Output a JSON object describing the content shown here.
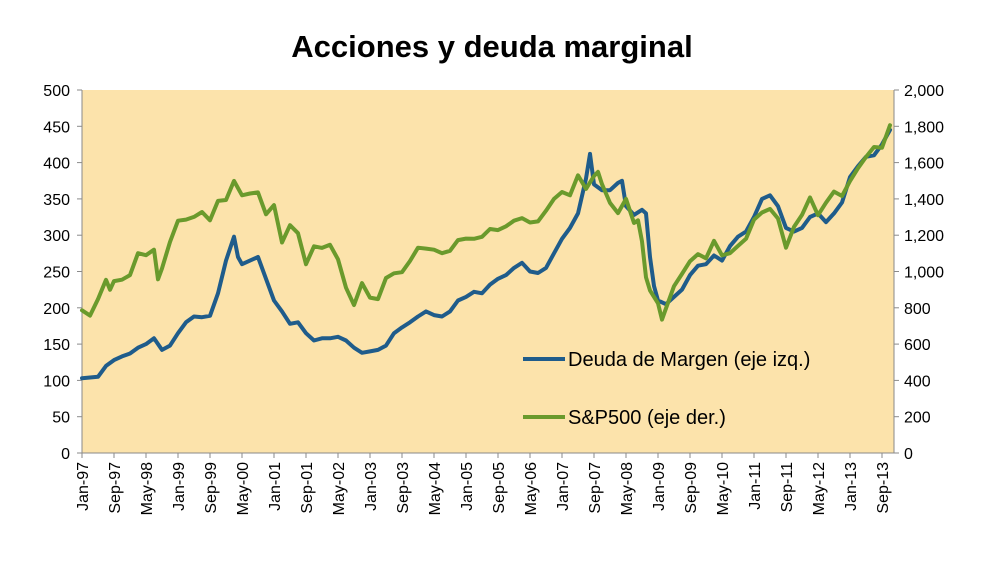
{
  "chart_data": {
    "type": "line",
    "title": "Acciones y deuda marginal",
    "x_tick_labels": [
      "Jan-97",
      "Sep-97",
      "May-98",
      "Jan-99",
      "Sep-99",
      "May-00",
      "Jan-01",
      "Sep-01",
      "May-02",
      "Jan-03",
      "Sep-03",
      "May-04",
      "Jan-05",
      "Sep-05",
      "May-06",
      "Jan-07",
      "Sep-07",
      "May-08",
      "Jan-09",
      "Sep-09",
      "May-10",
      "Jan-11",
      "Sep-11",
      "May-12",
      "Jan-13",
      "Sep-13"
    ],
    "x_tick_start": "1997-01",
    "x_tick_step_months": 8,
    "x_range": [
      "1997-01",
      "2013-12"
    ],
    "y_left": {
      "min": 0,
      "max": 500,
      "step": 50,
      "tick_labels": [
        "0",
        "50",
        "100",
        "150",
        "200",
        "250",
        "300",
        "350",
        "400",
        "450",
        "500"
      ]
    },
    "y_right": {
      "min": 0,
      "max": 2000,
      "step": 200,
      "tick_labels": [
        "0",
        "200",
        "400",
        "600",
        "800",
        "1,000",
        "1,200",
        "1,400",
        "1,600",
        "1,800",
        "2,000"
      ]
    },
    "plot_background": "#fce3ab",
    "grid": false,
    "legend_position": "bottom-right inside plot",
    "series": [
      {
        "name": "Deuda de Margen (eje izq.)",
        "axis": "left",
        "color": "#1f5c8b",
        "points": [
          [
            "1997-01",
            103
          ],
          [
            "1997-03",
            104
          ],
          [
            "1997-05",
            105
          ],
          [
            "1997-07",
            120
          ],
          [
            "1997-09",
            128
          ],
          [
            "1997-11",
            133
          ],
          [
            "1998-01",
            137
          ],
          [
            "1998-03",
            145
          ],
          [
            "1998-05",
            150
          ],
          [
            "1998-07",
            158
          ],
          [
            "1998-09",
            142
          ],
          [
            "1998-11",
            148
          ],
          [
            "1999-01",
            165
          ],
          [
            "1999-03",
            180
          ],
          [
            "1999-05",
            188
          ],
          [
            "1999-07",
            187
          ],
          [
            "1999-09",
            189
          ],
          [
            "1999-11",
            220
          ],
          [
            "2000-01",
            265
          ],
          [
            "2000-03",
            298
          ],
          [
            "2000-04",
            270
          ],
          [
            "2000-05",
            260
          ],
          [
            "2000-07",
            265
          ],
          [
            "2000-09",
            270
          ],
          [
            "2000-11",
            240
          ],
          [
            "2001-01",
            210
          ],
          [
            "2001-03",
            195
          ],
          [
            "2001-05",
            178
          ],
          [
            "2001-07",
            180
          ],
          [
            "2001-09",
            165
          ],
          [
            "2001-11",
            155
          ],
          [
            "2002-01",
            158
          ],
          [
            "2002-03",
            158
          ],
          [
            "2002-05",
            160
          ],
          [
            "2002-07",
            155
          ],
          [
            "2002-09",
            145
          ],
          [
            "2002-11",
            138
          ],
          [
            "2003-01",
            140
          ],
          [
            "2003-03",
            142
          ],
          [
            "2003-05",
            148
          ],
          [
            "2003-07",
            165
          ],
          [
            "2003-09",
            173
          ],
          [
            "2003-11",
            180
          ],
          [
            "2004-01",
            188
          ],
          [
            "2004-03",
            195
          ],
          [
            "2004-05",
            190
          ],
          [
            "2004-07",
            188
          ],
          [
            "2004-09",
            195
          ],
          [
            "2004-11",
            210
          ],
          [
            "2005-01",
            215
          ],
          [
            "2005-03",
            222
          ],
          [
            "2005-05",
            220
          ],
          [
            "2005-07",
            232
          ],
          [
            "2005-09",
            240
          ],
          [
            "2005-11",
            245
          ],
          [
            "2006-01",
            255
          ],
          [
            "2006-03",
            262
          ],
          [
            "2006-05",
            250
          ],
          [
            "2006-07",
            248
          ],
          [
            "2006-09",
            255
          ],
          [
            "2006-11",
            275
          ],
          [
            "2007-01",
            295
          ],
          [
            "2007-03",
            310
          ],
          [
            "2007-05",
            330
          ],
          [
            "2007-07",
            378
          ],
          [
            "2007-08",
            412
          ],
          [
            "2007-09",
            370
          ],
          [
            "2007-11",
            362
          ],
          [
            "2008-01",
            362
          ],
          [
            "2008-03",
            372
          ],
          [
            "2008-04",
            375
          ],
          [
            "2008-05",
            340
          ],
          [
            "2008-07",
            328
          ],
          [
            "2008-09",
            335
          ],
          [
            "2008-10",
            330
          ],
          [
            "2008-11",
            270
          ],
          [
            "2008-12",
            230
          ],
          [
            "2009-01",
            210
          ],
          [
            "2009-03",
            205
          ],
          [
            "2009-05",
            215
          ],
          [
            "2009-07",
            225
          ],
          [
            "2009-09",
            245
          ],
          [
            "2009-11",
            258
          ],
          [
            "2010-01",
            260
          ],
          [
            "2010-03",
            272
          ],
          [
            "2010-05",
            265
          ],
          [
            "2010-07",
            285
          ],
          [
            "2010-09",
            298
          ],
          [
            "2010-11",
            305
          ],
          [
            "2011-01",
            325
          ],
          [
            "2011-03",
            350
          ],
          [
            "2011-05",
            355
          ],
          [
            "2011-07",
            340
          ],
          [
            "2011-09",
            310
          ],
          [
            "2011-11",
            305
          ],
          [
            "2012-01",
            310
          ],
          [
            "2012-03",
            325
          ],
          [
            "2012-05",
            330
          ],
          [
            "2012-07",
            318
          ],
          [
            "2012-09",
            330
          ],
          [
            "2012-11",
            345
          ],
          [
            "2013-01",
            380
          ],
          [
            "2013-03",
            395
          ],
          [
            "2013-05",
            408
          ],
          [
            "2013-07",
            410
          ],
          [
            "2013-09",
            425
          ],
          [
            "2013-11",
            445
          ]
        ]
      },
      {
        "name": "S&P500 (eje der.)",
        "axis": "right",
        "color": "#6a9a2c",
        "points": [
          [
            "1997-01",
            786
          ],
          [
            "1997-03",
            757
          ],
          [
            "1997-05",
            848
          ],
          [
            "1997-07",
            954
          ],
          [
            "1997-08",
            899
          ],
          [
            "1997-09",
            947
          ],
          [
            "1997-11",
            955
          ],
          [
            "1998-01",
            980
          ],
          [
            "1998-03",
            1101
          ],
          [
            "1998-05",
            1090
          ],
          [
            "1998-07",
            1120
          ],
          [
            "1998-08",
            957
          ],
          [
            "1998-09",
            1017
          ],
          [
            "1998-11",
            1163
          ],
          [
            "1999-01",
            1280
          ],
          [
            "1999-03",
            1286
          ],
          [
            "1999-05",
            1301
          ],
          [
            "1999-07",
            1328
          ],
          [
            "1999-09",
            1282
          ],
          [
            "1999-11",
            1389
          ],
          [
            "2000-01",
            1394
          ],
          [
            "2000-03",
            1499
          ],
          [
            "2000-05",
            1420
          ],
          [
            "2000-07",
            1430
          ],
          [
            "2000-09",
            1436
          ],
          [
            "2000-11",
            1315
          ],
          [
            "2001-01",
            1366
          ],
          [
            "2001-03",
            1160
          ],
          [
            "2001-05",
            1255
          ],
          [
            "2001-07",
            1211
          ],
          [
            "2001-09",
            1040
          ],
          [
            "2001-11",
            1139
          ],
          [
            "2002-01",
            1130
          ],
          [
            "2002-03",
            1147
          ],
          [
            "2002-05",
            1067
          ],
          [
            "2002-07",
            911
          ],
          [
            "2002-09",
            815
          ],
          [
            "2002-11",
            936
          ],
          [
            "2003-01",
            856
          ],
          [
            "2003-03",
            848
          ],
          [
            "2003-05",
            964
          ],
          [
            "2003-07",
            990
          ],
          [
            "2003-09",
            996
          ],
          [
            "2003-11",
            1058
          ],
          [
            "2004-01",
            1131
          ],
          [
            "2004-03",
            1126
          ],
          [
            "2004-05",
            1120
          ],
          [
            "2004-07",
            1101
          ],
          [
            "2004-09",
            1114
          ],
          [
            "2004-11",
            1173
          ],
          [
            "2005-01",
            1181
          ],
          [
            "2005-03",
            1180
          ],
          [
            "2005-05",
            1191
          ],
          [
            "2005-07",
            1234
          ],
          [
            "2005-09",
            1228
          ],
          [
            "2005-11",
            1249
          ],
          [
            "2006-01",
            1280
          ],
          [
            "2006-03",
            1294
          ],
          [
            "2006-05",
            1270
          ],
          [
            "2006-07",
            1276
          ],
          [
            "2006-09",
            1335
          ],
          [
            "2006-11",
            1400
          ],
          [
            "2007-01",
            1438
          ],
          [
            "2007-03",
            1420
          ],
          [
            "2007-05",
            1530
          ],
          [
            "2007-07",
            1455
          ],
          [
            "2007-09",
            1526
          ],
          [
            "2007-10",
            1549
          ],
          [
            "2007-11",
            1481
          ],
          [
            "2008-01",
            1378
          ],
          [
            "2008-03",
            1322
          ],
          [
            "2008-05",
            1400
          ],
          [
            "2008-07",
            1267
          ],
          [
            "2008-08",
            1282
          ],
          [
            "2008-09",
            1166
          ],
          [
            "2008-10",
            968
          ],
          [
            "2008-11",
            896
          ],
          [
            "2009-01",
            825
          ],
          [
            "2009-02",
            735
          ],
          [
            "2009-03",
            797
          ],
          [
            "2009-05",
            919
          ],
          [
            "2009-07",
            987
          ],
          [
            "2009-09",
            1057
          ],
          [
            "2009-11",
            1096
          ],
          [
            "2010-01",
            1073
          ],
          [
            "2010-03",
            1169
          ],
          [
            "2010-05",
            1089
          ],
          [
            "2010-07",
            1101
          ],
          [
            "2010-09",
            1141
          ],
          [
            "2010-11",
            1180
          ],
          [
            "2011-01",
            1286
          ],
          [
            "2011-03",
            1325
          ],
          [
            "2011-05",
            1345
          ],
          [
            "2011-07",
            1292
          ],
          [
            "2011-09",
            1131
          ],
          [
            "2011-11",
            1246
          ],
          [
            "2012-01",
            1312
          ],
          [
            "2012-03",
            1408
          ],
          [
            "2012-05",
            1310
          ],
          [
            "2012-07",
            1379
          ],
          [
            "2012-09",
            1440
          ],
          [
            "2012-11",
            1416
          ],
          [
            "2013-01",
            1498
          ],
          [
            "2013-03",
            1569
          ],
          [
            "2013-05",
            1631
          ],
          [
            "2013-07",
            1686
          ],
          [
            "2013-09",
            1682
          ],
          [
            "2013-11",
            1806
          ]
        ]
      }
    ]
  }
}
